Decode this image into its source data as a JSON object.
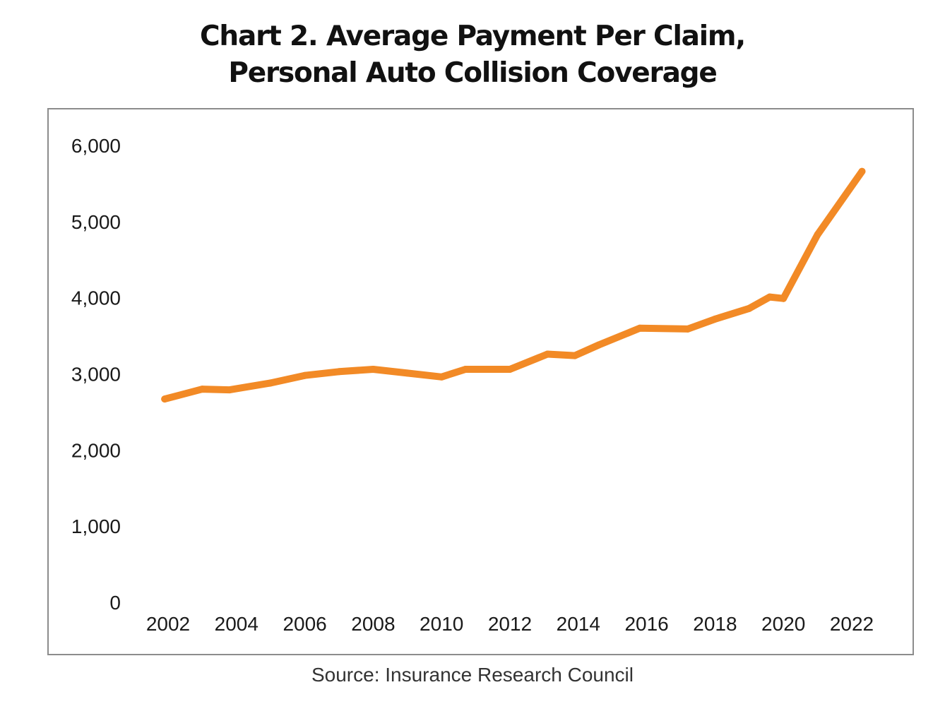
{
  "chart_data": {
    "type": "line",
    "title": [
      "Chart 2. Average Payment Per Claim,",
      "Personal Auto Collision Coverage"
    ],
    "source": "Source: Insurance Research Council",
    "xlabel": "",
    "ylabel": "",
    "x_tick_labels": [
      "2002",
      "2004",
      "2006",
      "2008",
      "2010",
      "2012",
      "2014",
      "2016",
      "2018",
      "2020",
      "2022"
    ],
    "y_tick_labels": [
      "0",
      "1,000",
      "2,000",
      "3,000",
      "4,000",
      "5,000",
      "6,000"
    ],
    "y_ticks": [
      0,
      1000,
      2000,
      3000,
      4000,
      5000,
      6000
    ],
    "ylim": [
      0,
      6000
    ],
    "xlim": [
      2001.5,
      2023
    ],
    "grid": false,
    "legend": "none",
    "series": [
      {
        "name": "Average Payment Per Claim",
        "color": "#f28a26",
        "x": [
          2001.9,
          2003,
          2003.8,
          2005,
          2006,
          2007,
          2008,
          2009,
          2010,
          2010.7,
          2011.3,
          2012,
          2013.1,
          2013.9,
          2014.6,
          2015.8,
          2017.2,
          2018,
          2019,
          2019.6,
          2020,
          2021,
          2022.3
        ],
        "values": [
          2670,
          2800,
          2790,
          2880,
          2980,
          3030,
          3060,
          3010,
          2960,
          3060,
          3060,
          3060,
          3260,
          3240,
          3380,
          3600,
          3590,
          3720,
          3860,
          4010,
          3990,
          4830,
          5660
        ]
      }
    ]
  }
}
